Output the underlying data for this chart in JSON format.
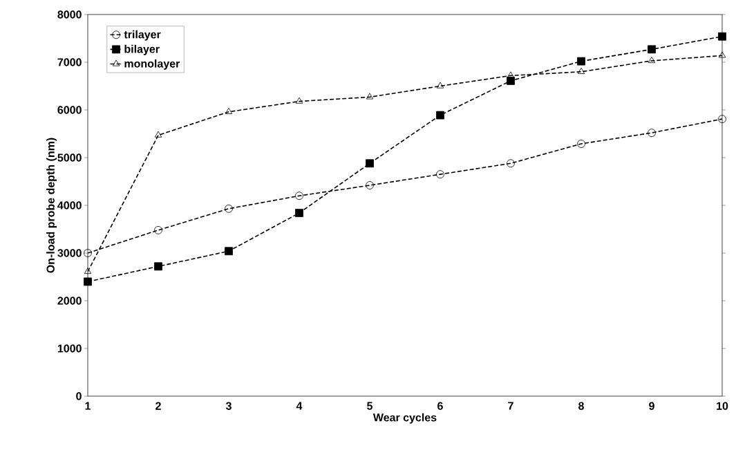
{
  "chart_data": {
    "type": "line",
    "xlabel": "Wear cycles",
    "ylabel": "On-load probe depth (nm)",
    "x": [
      1,
      2,
      3,
      4,
      5,
      6,
      7,
      8,
      9,
      10
    ],
    "series": [
      {
        "name": "trilayer",
        "color": "#000000",
        "marker": "circle",
        "values": [
          3000,
          3480,
          3930,
          4200,
          4420,
          4650,
          4880,
          5290,
          5520,
          5810
        ]
      },
      {
        "name": "bilayer",
        "color": "#000000",
        "marker": "square",
        "values": [
          2400,
          2720,
          3040,
          3840,
          4880,
          5890,
          6610,
          7020,
          7270,
          7540
        ]
      },
      {
        "name": "monolayer",
        "color": "#000000",
        "marker": "triangle",
        "values": [
          2610,
          5470,
          5960,
          6180,
          6270,
          6500,
          6720,
          6800,
          7030,
          7140
        ]
      }
    ],
    "xlim": [
      1,
      10
    ],
    "xticks": [
      1,
      2,
      3,
      4,
      5,
      6,
      7,
      8,
      9,
      10
    ],
    "ylim": [
      0,
      8000
    ],
    "yticks": [
      0,
      1000,
      2000,
      3000,
      4000,
      5000,
      6000,
      7000,
      8000
    ],
    "grid": false,
    "legend": "top left",
    "line_style": "dashed"
  }
}
